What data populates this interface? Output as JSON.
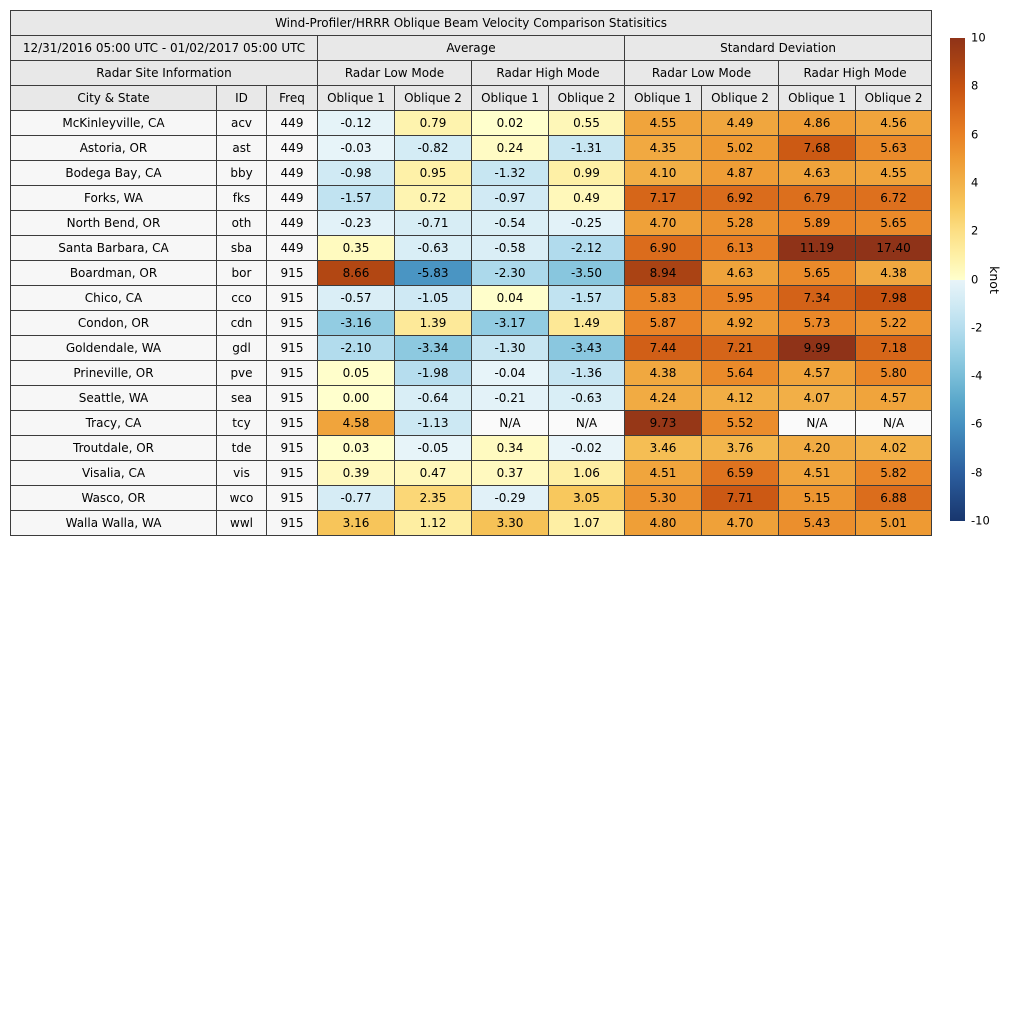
{
  "header": {
    "title": "Wind-Profiler/HRRR Oblique Beam Velocity Comparison Statisitics",
    "date_range": "12/31/2016 05:00 UTC - 01/02/2017 05:00 UTC",
    "group_average": "Average",
    "group_std": "Standard Deviation",
    "radar_site_info": "Radar Site Information",
    "low_mode": "Radar Low Mode",
    "high_mode": "Radar High Mode",
    "col_city": "City & State",
    "col_id": "ID",
    "col_freq": "Freq",
    "col_oblique1": "Oblique 1",
    "col_oblique2": "Oblique 2",
    "na_text": "N/A"
  },
  "colorbar": {
    "label": "knot",
    "min": -10,
    "max": 10,
    "ticks": [
      10,
      8,
      6,
      4,
      2,
      0,
      -2,
      -4,
      -6,
      -8,
      -10
    ]
  },
  "colors": {
    "header_bg": "#e8e8e8",
    "label_bg": "#f7f7f7",
    "na_bg": "#fafafa",
    "border": "#3c3c3c",
    "positive_stops": [
      "#ffffcd",
      "#fef0a6",
      "#fcdf85",
      "#f8c95e",
      "#f2b148",
      "#ee9a33",
      "#e88125",
      "#d96a1b",
      "#c65211",
      "#a84214",
      "#8f3318"
    ],
    "negative_stops": [
      "#e8f4f9",
      "#d0eaf4",
      "#b5ddee",
      "#97cfe4",
      "#79bdd8",
      "#5ba8cb",
      "#4691c1",
      "#3878b0",
      "#2c5f9f",
      "#224a86",
      "#18366e"
    ]
  },
  "chart_data": {
    "type": "heatmap",
    "title": "Wind-Profiler/HRRR Oblique Beam Velocity Comparison Statisitics",
    "subtitle_period": "12/31/2016 05:00 UTC - 01/02/2017 05:00 UTC",
    "unit": "knot",
    "value_range": [
      -10,
      10
    ],
    "legend_position": "right-colorbar",
    "column_groups": [
      {
        "group": "Average",
        "subgroups": [
          "Radar Low Mode",
          "Radar High Mode"
        ],
        "columns": [
          "Oblique 1",
          "Oblique 2",
          "Oblique 1",
          "Oblique 2"
        ]
      },
      {
        "group": "Standard Deviation",
        "subgroups": [
          "Radar Low Mode",
          "Radar High Mode"
        ],
        "columns": [
          "Oblique 1",
          "Oblique 2",
          "Oblique 1",
          "Oblique 2"
        ]
      }
    ],
    "rows": [
      {
        "city": "McKinleyville, CA",
        "id": "acv",
        "freq": "449",
        "avg": [
          -0.12,
          0.79,
          0.02,
          0.55
        ],
        "std": [
          4.55,
          4.49,
          4.86,
          4.56
        ]
      },
      {
        "city": "Astoria, OR",
        "id": "ast",
        "freq": "449",
        "avg": [
          -0.03,
          -0.82,
          0.24,
          -1.31
        ],
        "std": [
          4.35,
          5.02,
          7.68,
          5.63
        ]
      },
      {
        "city": "Bodega Bay, CA",
        "id": "bby",
        "freq": "449",
        "avg": [
          -0.98,
          0.95,
          -1.32,
          0.99
        ],
        "std": [
          4.1,
          4.87,
          4.63,
          4.55
        ]
      },
      {
        "city": "Forks, WA",
        "id": "fks",
        "freq": "449",
        "avg": [
          -1.57,
          0.72,
          -0.97,
          0.49
        ],
        "std": [
          7.17,
          6.92,
          6.79,
          6.72
        ]
      },
      {
        "city": "North Bend, OR",
        "id": "oth",
        "freq": "449",
        "avg": [
          -0.23,
          -0.71,
          -0.54,
          -0.25
        ],
        "std": [
          4.7,
          5.28,
          5.89,
          5.65
        ]
      },
      {
        "city": "Santa Barbara, CA",
        "id": "sba",
        "freq": "449",
        "avg": [
          0.35,
          -0.63,
          -0.58,
          -2.12
        ],
        "std": [
          6.9,
          6.13,
          11.19,
          17.4
        ]
      },
      {
        "city": "Boardman, OR",
        "id": "bor",
        "freq": "915",
        "avg": [
          8.66,
          -5.83,
          -2.3,
          -3.5
        ],
        "std": [
          8.94,
          4.63,
          5.65,
          4.38
        ]
      },
      {
        "city": "Chico, CA",
        "id": "cco",
        "freq": "915",
        "avg": [
          -0.57,
          -1.05,
          0.04,
          -1.57
        ],
        "std": [
          5.83,
          5.95,
          7.34,
          7.98
        ]
      },
      {
        "city": "Condon, OR",
        "id": "cdn",
        "freq": "915",
        "avg": [
          -3.16,
          1.39,
          -3.17,
          1.49
        ],
        "std": [
          5.87,
          4.92,
          5.73,
          5.22
        ]
      },
      {
        "city": "Goldendale, WA",
        "id": "gdl",
        "freq": "915",
        "avg": [
          -2.1,
          -3.34,
          -1.3,
          -3.43
        ],
        "std": [
          7.44,
          7.21,
          9.99,
          7.18
        ]
      },
      {
        "city": "Prineville, OR",
        "id": "pve",
        "freq": "915",
        "avg": [
          0.05,
          -1.98,
          -0.04,
          -1.36
        ],
        "std": [
          4.38,
          5.64,
          4.57,
          5.8
        ]
      },
      {
        "city": "Seattle, WA",
        "id": "sea",
        "freq": "915",
        "avg": [
          0.0,
          -0.64,
          -0.21,
          -0.63
        ],
        "std": [
          4.24,
          4.12,
          4.07,
          4.57
        ]
      },
      {
        "city": "Tracy, CA",
        "id": "tcy",
        "freq": "915",
        "avg": [
          4.58,
          -1.13,
          null,
          null
        ],
        "std": [
          9.73,
          5.52,
          null,
          null
        ]
      },
      {
        "city": "Troutdale, OR",
        "id": "tde",
        "freq": "915",
        "avg": [
          0.03,
          -0.05,
          0.34,
          -0.02
        ],
        "std": [
          3.46,
          3.76,
          4.2,
          4.02
        ]
      },
      {
        "city": "Visalia, CA",
        "id": "vis",
        "freq": "915",
        "avg": [
          0.39,
          0.47,
          0.37,
          1.06
        ],
        "std": [
          4.51,
          6.59,
          4.51,
          5.82
        ]
      },
      {
        "city": "Wasco, OR",
        "id": "wco",
        "freq": "915",
        "avg": [
          -0.77,
          2.35,
          -0.29,
          3.05
        ],
        "std": [
          5.3,
          7.71,
          5.15,
          6.88
        ]
      },
      {
        "city": "Walla Walla, WA",
        "id": "wwl",
        "freq": "915",
        "avg": [
          3.16,
          1.12,
          3.3,
          1.07
        ],
        "std": [
          4.8,
          4.7,
          5.43,
          5.01
        ]
      }
    ]
  }
}
